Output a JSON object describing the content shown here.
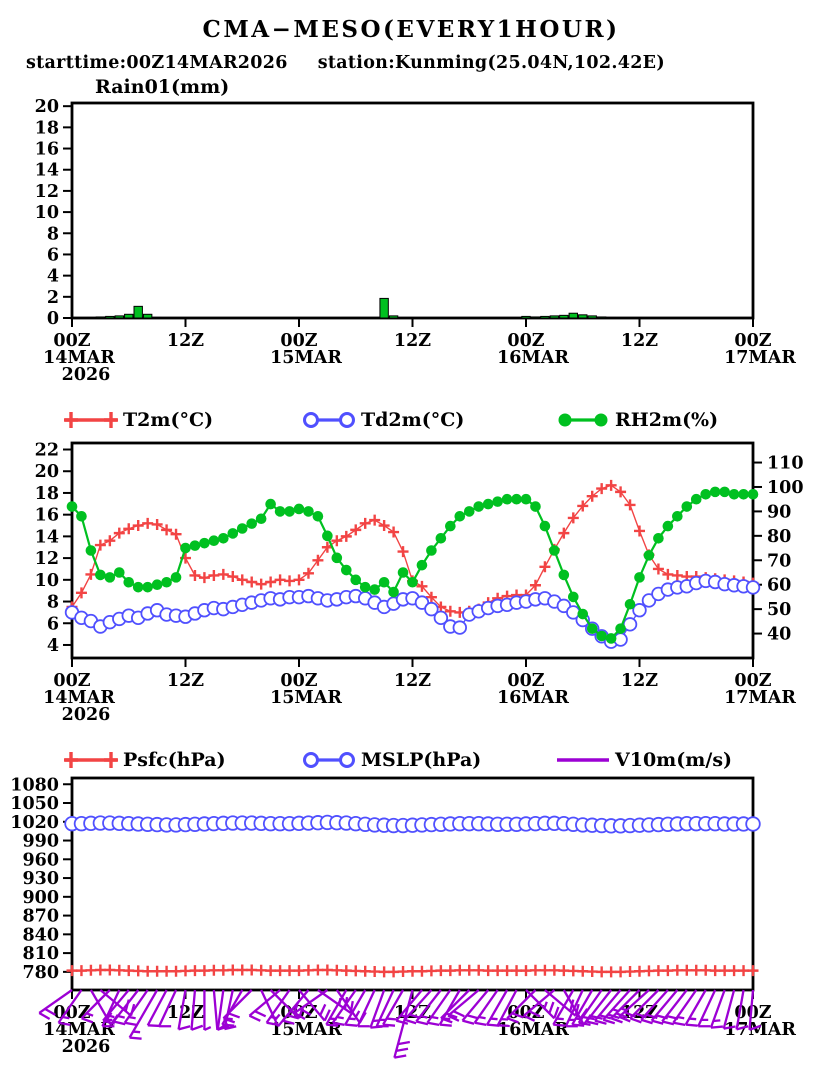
{
  "header": {
    "title": "CMA−MESO(EVERY1HOUR)",
    "starttime_label": "starttime:00Z14MAR2026",
    "station_label": "station:Kunming(25.04N,102.42E)"
  },
  "x_axis": {
    "hours_total": 72,
    "ticks": [
      {
        "h": 0,
        "line1": "00Z",
        "line2": "14MAR",
        "line3": "2026"
      },
      {
        "h": 12,
        "line1": "12Z"
      },
      {
        "h": 24,
        "line1": "00Z",
        "line2": "15MAR"
      },
      {
        "h": 36,
        "line1": "12Z"
      },
      {
        "h": 48,
        "line1": "00Z",
        "line2": "16MAR"
      },
      {
        "h": 60,
        "line1": "12Z"
      },
      {
        "h": 72,
        "line1": "00Z",
        "line2": "17MAR"
      }
    ]
  },
  "chart_data": [
    {
      "id": "rain",
      "type": "bar",
      "title": "Rain01(mm)",
      "y_ticks": [
        0,
        2,
        4,
        6,
        8,
        10,
        12,
        14,
        16,
        18,
        20
      ],
      "ylim": [
        0,
        20.3
      ],
      "color": "#00c020",
      "values": [
        0,
        0,
        0.05,
        0.1,
        0.15,
        0.2,
        0.35,
        1.1,
        0.35,
        0.05,
        0,
        0,
        0,
        0,
        0,
        0,
        0,
        0,
        0,
        0,
        0,
        0,
        0,
        0,
        0,
        0,
        0,
        0,
        0,
        0.05,
        0.05,
        0,
        0.05,
        1.85,
        0.2,
        0,
        0,
        0,
        0,
        0,
        0,
        0,
        0,
        0,
        0,
        0,
        0,
        0,
        0.15,
        0.1,
        0.15,
        0.2,
        0.25,
        0.45,
        0.3,
        0.2,
        0.1,
        0.05,
        0,
        0,
        0,
        0,
        0,
        0,
        0,
        0,
        0,
        0,
        0,
        0,
        0,
        0,
        0
      ]
    },
    {
      "id": "surface",
      "type": "line",
      "left_ticks": [
        4,
        6,
        8,
        10,
        12,
        14,
        16,
        18,
        20,
        22
      ],
      "left_range": [
        2.8,
        22.6
      ],
      "right_ticks": [
        40,
        50,
        60,
        70,
        80,
        90,
        100,
        110
      ],
      "right_range": [
        30,
        118
      ],
      "series": [
        {
          "label": "T2m(°C)",
          "marker": "plus",
          "color": "#f24444",
          "axis": "left",
          "values": [
            7.5,
            8.8,
            10.5,
            13.2,
            13.6,
            14.3,
            14.7,
            15.0,
            15.2,
            15.1,
            14.6,
            14.2,
            12.0,
            10.4,
            10.2,
            10.4,
            10.5,
            10.3,
            10.0,
            9.8,
            9.6,
            9.8,
            10.0,
            9.9,
            10.0,
            10.6,
            11.8,
            13.0,
            13.6,
            14.0,
            14.6,
            15.2,
            15.5,
            15.0,
            14.4,
            12.6,
            9.9,
            9.4,
            8.4,
            7.5,
            7.1,
            7.0,
            7.1,
            7.3,
            7.9,
            8.3,
            8.5,
            8.6,
            8.6,
            9.5,
            11.2,
            12.8,
            14.3,
            15.7,
            16.8,
            17.7,
            18.4,
            18.7,
            18.1,
            16.9,
            14.5,
            12.3,
            11.0,
            10.5,
            10.4,
            10.3,
            10.3,
            10.2,
            10.1,
            10.0,
            9.9,
            9.8,
            9.7
          ]
        },
        {
          "label": "Td2m(°C)",
          "marker": "open-circle",
          "color": "#5050ff",
          "axis": "left",
          "values": [
            7.0,
            6.5,
            6.2,
            5.7,
            6.1,
            6.4,
            6.7,
            6.5,
            6.9,
            7.2,
            6.8,
            6.7,
            6.6,
            6.9,
            7.2,
            7.4,
            7.3,
            7.5,
            7.7,
            7.9,
            8.1,
            8.3,
            8.2,
            8.4,
            8.4,
            8.5,
            8.3,
            8.1,
            8.2,
            8.4,
            8.5,
            8.3,
            7.9,
            7.5,
            7.8,
            8.2,
            8.3,
            7.9,
            7.3,
            6.5,
            5.7,
            5.6,
            6.8,
            7.1,
            7.4,
            7.6,
            7.7,
            7.9,
            8.0,
            8.2,
            8.3,
            8.0,
            7.6,
            7.0,
            6.3,
            5.5,
            4.8,
            4.3,
            4.5,
            5.9,
            7.2,
            8.1,
            8.7,
            9.1,
            9.3,
            9.4,
            9.7,
            9.9,
            9.8,
            9.6,
            9.5,
            9.4,
            9.3
          ]
        },
        {
          "label": "RH2m(%)",
          "marker": "filled-circle",
          "color": "#00c020",
          "axis": "right",
          "values": [
            92,
            88,
            74,
            64,
            63,
            65,
            61,
            59,
            59,
            60,
            61,
            63,
            75,
            76,
            77,
            78,
            79,
            81,
            83,
            85,
            87,
            93,
            90,
            90,
            91,
            90,
            88,
            80,
            71,
            66,
            62,
            59,
            58,
            61,
            57,
            65,
            61,
            68,
            74,
            79,
            84,
            88,
            90,
            92,
            93,
            94,
            95,
            95,
            95,
            92,
            84,
            74,
            64,
            55,
            48,
            42,
            39,
            38,
            42,
            52,
            63,
            72,
            79,
            84,
            88,
            92,
            95,
            97,
            98,
            98,
            97,
            97,
            97
          ]
        }
      ]
    },
    {
      "id": "pressure_wind",
      "type": "line",
      "y_ticks": [
        780,
        810,
        840,
        870,
        900,
        930,
        960,
        990,
        1020,
        1050,
        1080
      ],
      "range": [
        751,
        1090
      ],
      "series": [
        {
          "label": "Psfc(hPa)",
          "marker": "plus",
          "color": "#f24444",
          "values": [
            782,
            782,
            782.5,
            783,
            783,
            782.5,
            782,
            781.5,
            781,
            781,
            781,
            781,
            781.5,
            782,
            782,
            782.5,
            782.5,
            783,
            783,
            783,
            782.5,
            782,
            782,
            782,
            782,
            782.5,
            783,
            783,
            782.5,
            782,
            781.5,
            781,
            780.5,
            780,
            780,
            780.5,
            781,
            781,
            781.5,
            782,
            782,
            782.5,
            782.5,
            782.5,
            782,
            782,
            782,
            782,
            782,
            782.5,
            782.5,
            782.5,
            782,
            781.5,
            781,
            780.5,
            780,
            780,
            780,
            780.5,
            781,
            781.5,
            782,
            782,
            782.5,
            782.5,
            782.5,
            782.5,
            782,
            782,
            782,
            782,
            782
          ]
        },
        {
          "label": "MSLP(hPa)",
          "marker": "open-circle",
          "color": "#5050ff",
          "values": [
            1017,
            1017,
            1017.5,
            1018,
            1018,
            1017.5,
            1017,
            1016.5,
            1016,
            1015.5,
            1015,
            1015,
            1015.5,
            1016,
            1016.5,
            1017,
            1017.5,
            1018,
            1018,
            1018,
            1017.5,
            1017,
            1017,
            1017,
            1017.5,
            1018,
            1018.5,
            1019,
            1018.5,
            1018,
            1017,
            1016,
            1015,
            1014.5,
            1014,
            1014,
            1014.5,
            1015,
            1015.5,
            1016,
            1016.5,
            1017,
            1017,
            1017,
            1016.5,
            1016,
            1016,
            1016,
            1016.5,
            1017,
            1017.5,
            1017.5,
            1017,
            1016,
            1015,
            1014.5,
            1014,
            1013.5,
            1013.5,
            1014,
            1014.5,
            1015,
            1015.5,
            1016,
            1016.5,
            1017,
            1017,
            1017,
            1017,
            1016.5,
            1016.5,
            1016.5,
            1016.5
          ]
        }
      ],
      "wind": {
        "label": "V10m(m/s)",
        "color": "#9c00d4",
        "barbs": [
          [
            -55,
            8
          ],
          [
            -35,
            7
          ],
          [
            30,
            6
          ],
          [
            50,
            8
          ],
          [
            -45,
            7
          ],
          [
            -25,
            6
          ],
          [
            -40,
            7
          ],
          [
            -38,
            7
          ],
          [
            -35,
            6
          ],
          [
            -30,
            6,
            55
          ],
          [
            -28,
            5
          ],
          [
            -25,
            5
          ],
          [
            -10,
            4
          ],
          [
            -5,
            4
          ],
          [
            0,
            3
          ],
          [
            5,
            4
          ],
          [
            -8,
            5
          ],
          [
            -12,
            4
          ],
          [
            -30,
            6
          ],
          [
            -45,
            8
          ],
          [
            25,
            7
          ],
          [
            45,
            9
          ],
          [
            -50,
            8
          ],
          [
            -35,
            7
          ],
          [
            40,
            9
          ],
          [
            -40,
            8
          ],
          [
            55,
            10
          ],
          [
            -55,
            8
          ],
          [
            35,
            7
          ],
          [
            -30,
            6
          ],
          [
            -35,
            6
          ],
          [
            -30,
            6
          ],
          [
            -25,
            5
          ],
          [
            -20,
            6
          ],
          [
            -25,
            7
          ],
          [
            -30,
            8
          ],
          [
            -15,
            12,
            70
          ],
          [
            -40,
            7
          ],
          [
            -42,
            8
          ],
          [
            -38,
            7
          ],
          [
            -35,
            6
          ],
          [
            -30,
            6
          ],
          [
            -45,
            8
          ],
          [
            -50,
            9
          ],
          [
            -40,
            8
          ],
          [
            -35,
            7
          ],
          [
            -30,
            6
          ],
          [
            -28,
            6
          ],
          [
            45,
            10
          ],
          [
            -45,
            9
          ],
          [
            50,
            8
          ],
          [
            -50,
            9
          ],
          [
            30,
            8
          ],
          [
            -30,
            7
          ],
          [
            -25,
            6
          ],
          [
            -30,
            7
          ],
          [
            -35,
            8
          ],
          [
            -38,
            8
          ],
          [
            -40,
            9
          ],
          [
            -42,
            10
          ],
          [
            -45,
            10
          ],
          [
            -48,
            9
          ],
          [
            -45,
            9
          ],
          [
            -42,
            8
          ],
          [
            -40,
            8
          ],
          [
            -38,
            8
          ],
          [
            -35,
            7
          ],
          [
            -30,
            7
          ],
          [
            -25,
            6
          ],
          [
            -20,
            6
          ],
          [
            -15,
            5
          ],
          [
            -10,
            5
          ],
          [
            -5,
            4
          ]
        ]
      }
    }
  ]
}
